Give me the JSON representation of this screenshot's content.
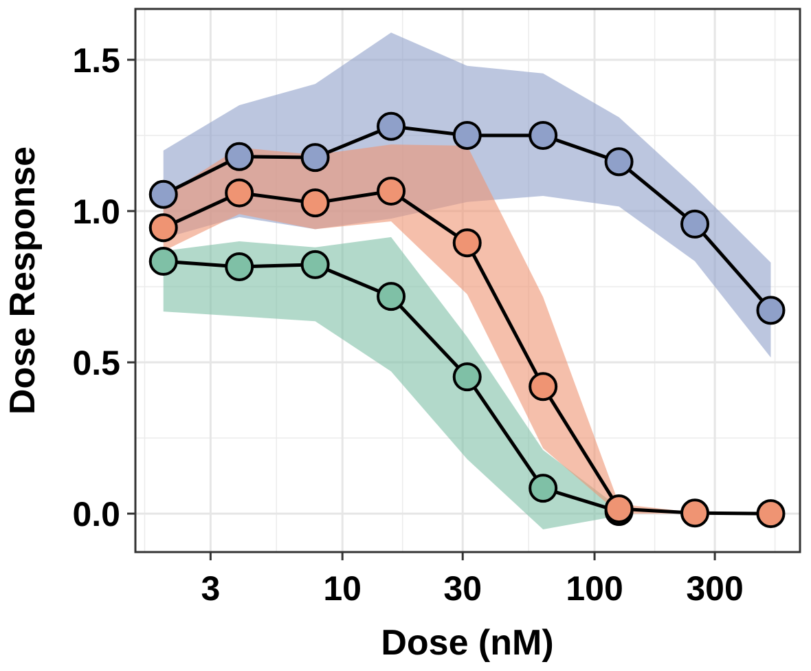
{
  "chart_data": {
    "type": "line",
    "xlabel": "Dose (nM)",
    "ylabel": "Dose Response",
    "log_x": true,
    "grid": true,
    "x": [
      1.95,
      3.9,
      7.8,
      15.6,
      31.25,
      62.5,
      125,
      250,
      500
    ],
    "xlim": [
      1.51,
      653
    ],
    "xticks": [
      3,
      10,
      30,
      100,
      300
    ],
    "ylim": [
      -0.127,
      1.668
    ],
    "yticks": [
      {
        "value": 0,
        "label": "0.0"
      },
      {
        "value": 0.5,
        "label": "0.5"
      },
      {
        "value": 1,
        "label": "1.0"
      },
      {
        "value": 1.5,
        "label": "1.5"
      }
    ],
    "series": [
      {
        "color": "#8fa0c9",
        "values": [
          1.055,
          1.18,
          1.177,
          1.28,
          1.25,
          1.25,
          1.163,
          0.957,
          0.672
        ],
        "upper": [
          1.2,
          1.35,
          1.42,
          1.59,
          1.48,
          1.455,
          1.31,
          1.08,
          0.83
        ],
        "lower": [
          0.91,
          0.98,
          0.94,
          0.975,
          1.03,
          1.05,
          1.015,
          0.834,
          0.516
        ]
      },
      {
        "color": "#7fc0a6",
        "values": [
          0.834,
          0.816,
          0.823,
          0.718,
          0.452,
          0.084,
          0.007,
          null,
          null
        ],
        "upper": [
          0.868,
          0.9,
          0.88,
          0.914,
          0.584,
          0.21,
          0.02,
          null,
          null
        ],
        "lower": [
          0.668,
          0.652,
          0.636,
          0.47,
          0.18,
          -0.052,
          -0.007,
          null,
          null
        ]
      },
      {
        "color": "#ef9473",
        "values": [
          0.945,
          1.06,
          1.027,
          1.066,
          0.895,
          0.42,
          0.016,
          0.002,
          0
        ],
        "upper": [
          1.05,
          1.21,
          1.186,
          1.22,
          1.216,
          0.716,
          0.032,
          0.004,
          0.002
        ],
        "lower": [
          0.868,
          0.99,
          0.94,
          0.966,
          0.725,
          0.216,
          0,
          0,
          -0.002
        ]
      }
    ]
  }
}
